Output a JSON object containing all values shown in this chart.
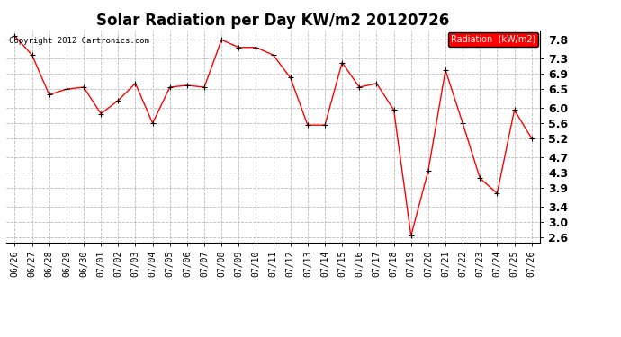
{
  "title": "Solar Radiation per Day KW/m2 20120726",
  "copyright_text": "Copyright 2012 Cartronics.com",
  "legend_label": "Radiation  (kW/m2)",
  "dates": [
    "06/26",
    "06/27",
    "06/28",
    "06/29",
    "06/30",
    "07/01",
    "07/02",
    "07/03",
    "07/04",
    "07/05",
    "07/06",
    "07/07",
    "07/08",
    "07/09",
    "07/10",
    "07/11",
    "07/12",
    "07/13",
    "07/14",
    "07/15",
    "07/16",
    "07/17",
    "07/18",
    "07/19",
    "07/20",
    "07/21",
    "07/22",
    "07/23",
    "07/24",
    "07/25",
    "07/26"
  ],
  "values": [
    7.9,
    7.4,
    6.35,
    6.5,
    6.55,
    5.85,
    6.2,
    6.65,
    5.6,
    6.55,
    6.6,
    6.55,
    7.8,
    7.6,
    7.6,
    7.4,
    6.8,
    5.55,
    5.55,
    7.2,
    6.55,
    6.65,
    5.95,
    2.63,
    4.35,
    7.0,
    5.6,
    4.15,
    3.75,
    5.95,
    5.2
  ],
  "yticks": [
    2.6,
    3.0,
    3.4,
    3.9,
    4.3,
    4.7,
    5.2,
    5.6,
    6.0,
    6.5,
    6.9,
    7.3,
    7.8
  ],
  "ylim": [
    2.45,
    8.05
  ],
  "line_color": "red",
  "marker_color": "black",
  "bg_color": "white",
  "grid_color": "#bbbbbb",
  "legend_bg": "red",
  "legend_text_color": "white",
  "title_fontsize": 12,
  "tick_fontsize": 7,
  "ytick_fontsize": 9,
  "copyright_fontsize": 6.5
}
